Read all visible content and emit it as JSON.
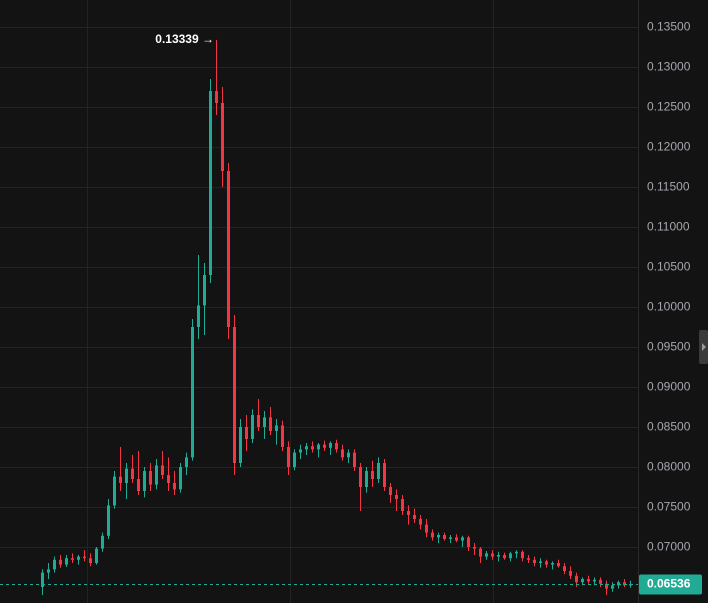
{
  "chart_data": {
    "type": "candlestick",
    "up_color": "#22ab94",
    "down_color": "#f23645",
    "ylim": [
      0.063,
      0.138375
    ],
    "yticks": [
      {
        "value": 0.07,
        "label": "0.07000"
      },
      {
        "value": 0.075,
        "label": "0.07500"
      },
      {
        "value": 0.08,
        "label": "0.08000"
      },
      {
        "value": 0.085,
        "label": "0.08500"
      },
      {
        "value": 0.09,
        "label": "0.09000"
      },
      {
        "value": 0.095,
        "label": "0.09500"
      },
      {
        "value": 0.1,
        "label": "0.10000"
      },
      {
        "value": 0.105,
        "label": "0.10500"
      },
      {
        "value": 0.11,
        "label": "0.11000"
      },
      {
        "value": 0.115,
        "label": "0.11500"
      },
      {
        "value": 0.12,
        "label": "0.12000"
      },
      {
        "value": 0.125,
        "label": "0.12500"
      },
      {
        "value": 0.13,
        "label": "0.13000"
      },
      {
        "value": 0.135,
        "label": "0.13500"
      }
    ],
    "grid": true,
    "peak": {
      "value": 0.13339,
      "label": "0.13339 →"
    },
    "last_price": {
      "value": 0.06536,
      "label": "0.06536"
    },
    "ohlc": [
      [
        0.065,
        0.0672,
        0.064,
        0.0668
      ],
      [
        0.0668,
        0.068,
        0.066,
        0.0672
      ],
      [
        0.0672,
        0.0688,
        0.0668,
        0.0684
      ],
      [
        0.0684,
        0.069,
        0.0674,
        0.0678
      ],
      [
        0.0678,
        0.069,
        0.0675,
        0.0686
      ],
      [
        0.0686,
        0.0692,
        0.068,
        0.0684
      ],
      [
        0.0684,
        0.069,
        0.0678,
        0.0688
      ],
      [
        0.0688,
        0.0696,
        0.0682,
        0.0686
      ],
      [
        0.0686,
        0.0692,
        0.0676,
        0.068
      ],
      [
        0.068,
        0.07,
        0.0678,
        0.0698
      ],
      [
        0.0698,
        0.0718,
        0.0694,
        0.0714
      ],
      [
        0.0714,
        0.076,
        0.071,
        0.0752
      ],
      [
        0.0752,
        0.0795,
        0.0748,
        0.0788
      ],
      [
        0.0788,
        0.0825,
        0.077,
        0.078
      ],
      [
        0.078,
        0.0805,
        0.076,
        0.0798
      ],
      [
        0.0798,
        0.0815,
        0.078,
        0.0785
      ],
      [
        0.0785,
        0.082,
        0.0765,
        0.077
      ],
      [
        0.077,
        0.08,
        0.0762,
        0.0795
      ],
      [
        0.0795,
        0.0805,
        0.077,
        0.0778
      ],
      [
        0.0778,
        0.081,
        0.0772,
        0.0802
      ],
      [
        0.0802,
        0.082,
        0.0785,
        0.079
      ],
      [
        0.079,
        0.0812,
        0.077,
        0.078
      ],
      [
        0.078,
        0.0795,
        0.0765,
        0.0772
      ],
      [
        0.0772,
        0.0805,
        0.0768,
        0.08
      ],
      [
        0.08,
        0.0818,
        0.079,
        0.0812
      ],
      [
        0.0812,
        0.0985,
        0.0808,
        0.0975
      ],
      [
        0.0975,
        0.1065,
        0.096,
        0.1002
      ],
      [
        0.1002,
        0.1055,
        0.0965,
        0.104
      ],
      [
        0.104,
        0.1285,
        0.103,
        0.127
      ],
      [
        0.127,
        0.13339,
        0.124,
        0.1255
      ],
      [
        0.1255,
        0.1275,
        0.115,
        0.117
      ],
      [
        0.117,
        0.118,
        0.096,
        0.0975
      ],
      [
        0.0975,
        0.099,
        0.079,
        0.0805
      ],
      [
        0.0805,
        0.086,
        0.08,
        0.085
      ],
      [
        0.085,
        0.0865,
        0.082,
        0.0835
      ],
      [
        0.0835,
        0.0872,
        0.083,
        0.0865
      ],
      [
        0.0865,
        0.0885,
        0.0845,
        0.085
      ],
      [
        0.085,
        0.087,
        0.0835,
        0.0862
      ],
      [
        0.0862,
        0.0875,
        0.084,
        0.0845
      ],
      [
        0.0845,
        0.086,
        0.0828,
        0.0852
      ],
      [
        0.0852,
        0.0858,
        0.082,
        0.0825
      ],
      [
        0.0825,
        0.0832,
        0.079,
        0.08
      ],
      [
        0.08,
        0.0822,
        0.0796,
        0.0818
      ],
      [
        0.0818,
        0.0828,
        0.081,
        0.0822
      ],
      [
        0.0822,
        0.083,
        0.0815,
        0.0826
      ],
      [
        0.0826,
        0.0832,
        0.0818,
        0.0822
      ],
      [
        0.0822,
        0.083,
        0.0812,
        0.0828
      ],
      [
        0.0828,
        0.0833,
        0.082,
        0.0824
      ],
      [
        0.0824,
        0.0832,
        0.0815,
        0.083
      ],
      [
        0.083,
        0.0834,
        0.0818,
        0.0822
      ],
      [
        0.0822,
        0.0828,
        0.0808,
        0.0812
      ],
      [
        0.0812,
        0.0822,
        0.0805,
        0.0818
      ],
      [
        0.0818,
        0.0822,
        0.0795,
        0.08
      ],
      [
        0.08,
        0.0805,
        0.0745,
        0.0775
      ],
      [
        0.0775,
        0.08,
        0.0768,
        0.0795
      ],
      [
        0.0795,
        0.0808,
        0.0775,
        0.0785
      ],
      [
        0.0785,
        0.0812,
        0.078,
        0.0805
      ],
      [
        0.0805,
        0.081,
        0.077,
        0.0775
      ],
      [
        0.0775,
        0.078,
        0.0755,
        0.0765
      ],
      [
        0.0765,
        0.0772,
        0.0745,
        0.076
      ],
      [
        0.076,
        0.0765,
        0.074,
        0.0745
      ],
      [
        0.0745,
        0.0752,
        0.0728,
        0.074
      ],
      [
        0.074,
        0.0748,
        0.073,
        0.0735
      ],
      [
        0.0735,
        0.074,
        0.0722,
        0.0728
      ],
      [
        0.0728,
        0.0735,
        0.0712,
        0.0718
      ],
      [
        0.0718,
        0.0722,
        0.0708,
        0.0712
      ],
      [
        0.0712,
        0.0718,
        0.0705,
        0.0715
      ],
      [
        0.0715,
        0.0718,
        0.0708,
        0.071
      ],
      [
        0.071,
        0.0715,
        0.0705,
        0.0712
      ],
      [
        0.0712,
        0.0716,
        0.0706,
        0.0708
      ],
      [
        0.0708,
        0.0714,
        0.07,
        0.0712
      ],
      [
        0.0712,
        0.0714,
        0.0695,
        0.07
      ],
      [
        0.07,
        0.0705,
        0.069,
        0.0698
      ],
      [
        0.0698,
        0.07,
        0.068,
        0.0688
      ],
      [
        0.0688,
        0.0695,
        0.0684,
        0.0692
      ],
      [
        0.0692,
        0.0696,
        0.0684,
        0.0688
      ],
      [
        0.0688,
        0.0694,
        0.0682,
        0.069
      ],
      [
        0.069,
        0.0693,
        0.0684,
        0.0686
      ],
      [
        0.0686,
        0.0694,
        0.0682,
        0.0692
      ],
      [
        0.0692,
        0.0696,
        0.0686,
        0.0694
      ],
      [
        0.0694,
        0.0696,
        0.0682,
        0.0686
      ],
      [
        0.0686,
        0.069,
        0.068,
        0.0684
      ],
      [
        0.0684,
        0.0688,
        0.0676,
        0.068
      ],
      [
        0.068,
        0.0686,
        0.0674,
        0.0682
      ],
      [
        0.0682,
        0.0684,
        0.0674,
        0.0678
      ],
      [
        0.0678,
        0.0682,
        0.0672,
        0.068
      ],
      [
        0.068,
        0.0684,
        0.0674,
        0.0676
      ],
      [
        0.0676,
        0.068,
        0.0666,
        0.067
      ],
      [
        0.067,
        0.0676,
        0.066,
        0.0664
      ],
      [
        0.0664,
        0.0668,
        0.065,
        0.0656
      ],
      [
        0.0656,
        0.0662,
        0.0652,
        0.066
      ],
      [
        0.066,
        0.0664,
        0.0654,
        0.0657
      ],
      [
        0.0657,
        0.0662,
        0.0652,
        0.0659
      ],
      [
        0.0659,
        0.0662,
        0.065,
        0.0654
      ],
      [
        0.0654,
        0.0658,
        0.064,
        0.0648
      ],
      [
        0.0648,
        0.0656,
        0.0644,
        0.0652
      ],
      [
        0.0652,
        0.0658,
        0.0648,
        0.0656
      ],
      [
        0.0656,
        0.066,
        0.065,
        0.0652
      ],
      [
        0.0652,
        0.0658,
        0.0649,
        0.06536
      ]
    ]
  }
}
